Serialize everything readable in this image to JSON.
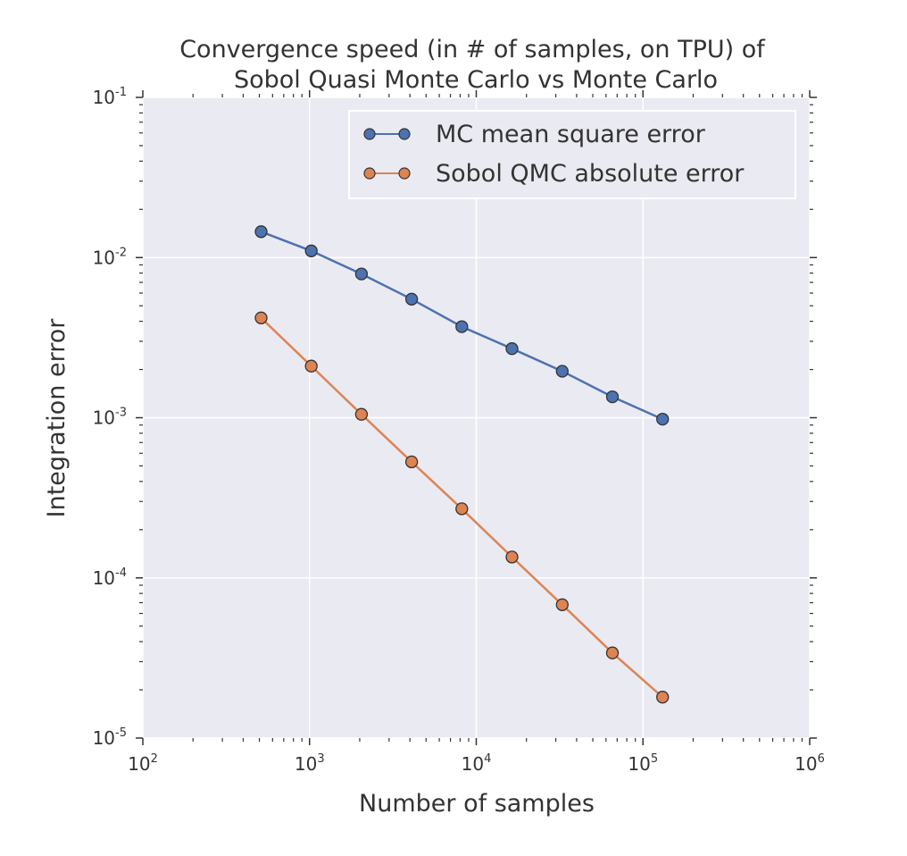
{
  "chart_data": {
    "type": "line",
    "title_lines": [
      "Convergence speed (in # of samples, on TPU) of",
      "Sobol Quasi Monte Carlo vs Monte Carlo"
    ],
    "xlabel": "Number of samples",
    "ylabel": "Integration error",
    "xscale": "log",
    "yscale": "log",
    "xlim": [
      100,
      1000000
    ],
    "ylim": [
      1e-05,
      0.1
    ],
    "xticks": [
      {
        "base": "10",
        "exp": "2"
      },
      {
        "base": "10",
        "exp": "3"
      },
      {
        "base": "10",
        "exp": "4"
      },
      {
        "base": "10",
        "exp": "5"
      },
      {
        "base": "10",
        "exp": "6"
      }
    ],
    "yticks": [
      {
        "base": "10",
        "exp": "-5"
      },
      {
        "base": "10",
        "exp": "-4"
      },
      {
        "base": "10",
        "exp": "-3"
      },
      {
        "base": "10",
        "exp": "-2"
      },
      {
        "base": "10",
        "exp": "-1"
      }
    ],
    "grid": true,
    "legend_position": "top-right",
    "x": [
      512,
      1024,
      2048,
      4096,
      8192,
      16384,
      32768,
      65536,
      131072
    ],
    "series": [
      {
        "name": "MC mean square error",
        "color": "#4c72b0",
        "values": [
          0.0145,
          0.011,
          0.0079,
          0.0055,
          0.0037,
          0.0027,
          0.00195,
          0.00135,
          0.00098
        ]
      },
      {
        "name": "Sobol QMC absolute error",
        "color": "#dd8452",
        "values": [
          0.0042,
          0.0021,
          0.00105,
          0.00053,
          0.00027,
          0.000135,
          6.8e-05,
          3.4e-05,
          1.8e-05
        ]
      }
    ],
    "plot_background": "#eaeaf2",
    "grid_color": "#ffffff",
    "marker_edge_color": "#333333"
  }
}
